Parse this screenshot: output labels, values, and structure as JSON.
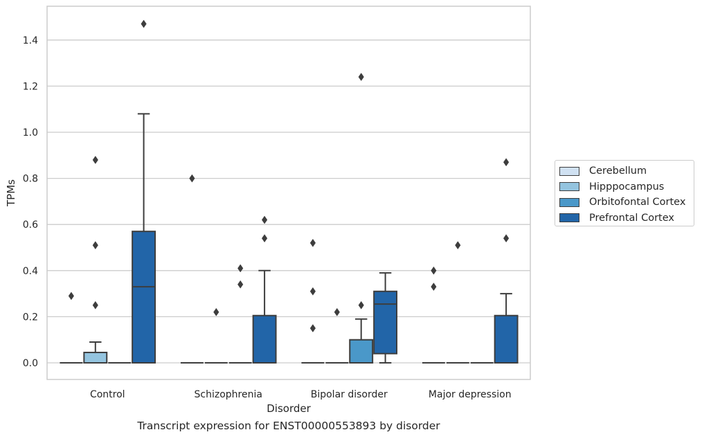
{
  "chart_data": {
    "type": "box",
    "xlabel": "Disorder",
    "ylabel": "TPMs",
    "caption": "Transcript expression for ENST00000553893 by disorder",
    "categories": [
      "Control",
      "Schizophrenia",
      "Bipolar disorder",
      "Major depression"
    ],
    "ylim": [
      -0.07,
      1.545
    ],
    "yticks": [
      "0.0",
      "0.2",
      "0.4",
      "0.6",
      "0.8",
      "1.0",
      "1.2",
      "1.4"
    ],
    "grid": "horizontal",
    "legend_placement": "right",
    "series": [
      {
        "name": "Cerebellum",
        "color": "#d0e1f2",
        "boxes": [
          {
            "q1": 0,
            "median": 0,
            "q3": 0,
            "whisker_low": 0,
            "whisker_high": 0,
            "outliers": [
              0.29
            ]
          },
          {
            "q1": 0,
            "median": 0,
            "q3": 0,
            "whisker_low": 0,
            "whisker_high": 0,
            "outliers": [
              0.8
            ]
          },
          {
            "q1": 0,
            "median": 0,
            "q3": 0,
            "whisker_low": 0,
            "whisker_high": 0,
            "outliers": [
              0.15,
              0.31,
              0.52
            ]
          },
          {
            "q1": 0,
            "median": 0,
            "q3": 0,
            "whisker_low": 0,
            "whisker_high": 0,
            "outliers": [
              0.33,
              0.4
            ]
          }
        ]
      },
      {
        "name": "Hipppocampus",
        "color": "#94c4df",
        "boxes": [
          {
            "q1": 0,
            "median": 0,
            "q3": 0.045,
            "whisker_low": 0,
            "whisker_high": 0.09,
            "outliers": [
              0.25,
              0.51,
              0.88
            ]
          },
          {
            "q1": 0,
            "median": 0,
            "q3": 0,
            "whisker_low": 0,
            "whisker_high": 0,
            "outliers": [
              0.22
            ]
          },
          {
            "q1": 0,
            "median": 0,
            "q3": 0,
            "whisker_low": 0,
            "whisker_high": 0,
            "outliers": [
              0.22
            ]
          },
          {
            "q1": 0,
            "median": 0,
            "q3": 0,
            "whisker_low": 0,
            "whisker_high": 0,
            "outliers": [
              0.51
            ]
          }
        ]
      },
      {
        "name": "Orbitofontal Cortex",
        "color": "#4a98c9",
        "boxes": [
          {
            "q1": 0,
            "median": 0,
            "q3": 0,
            "whisker_low": 0,
            "whisker_high": 0,
            "outliers": []
          },
          {
            "q1": 0,
            "median": 0,
            "q3": 0,
            "whisker_low": 0,
            "whisker_high": 0,
            "outliers": [
              0.34,
              0.41
            ]
          },
          {
            "q1": 0,
            "median": 0,
            "q3": 0.1,
            "whisker_low": 0,
            "whisker_high": 0.19,
            "outliers": [
              0.25,
              1.24
            ]
          },
          {
            "q1": 0,
            "median": 0,
            "q3": 0,
            "whisker_low": 0,
            "whisker_high": 0,
            "outliers": []
          }
        ]
      },
      {
        "name": "Prefrontal Cortex",
        "color": "#2265a8",
        "boxes": [
          {
            "q1": 0,
            "median": 0.33,
            "q3": 0.57,
            "whisker_low": 0,
            "whisker_high": 1.08,
            "outliers": [
              1.47
            ]
          },
          {
            "q1": 0,
            "median": 0,
            "q3": 0.205,
            "whisker_low": 0,
            "whisker_high": 0.4,
            "outliers": [
              0.54,
              0.62
            ]
          },
          {
            "q1": 0.04,
            "median": 0.255,
            "q3": 0.31,
            "whisker_low": 0,
            "whisker_high": 0.39,
            "outliers": []
          },
          {
            "q1": 0,
            "median": 0,
            "q3": 0.205,
            "whisker_low": 0,
            "whisker_high": 0.3,
            "outliers": [
              0.54,
              0.87
            ]
          }
        ]
      }
    ]
  }
}
